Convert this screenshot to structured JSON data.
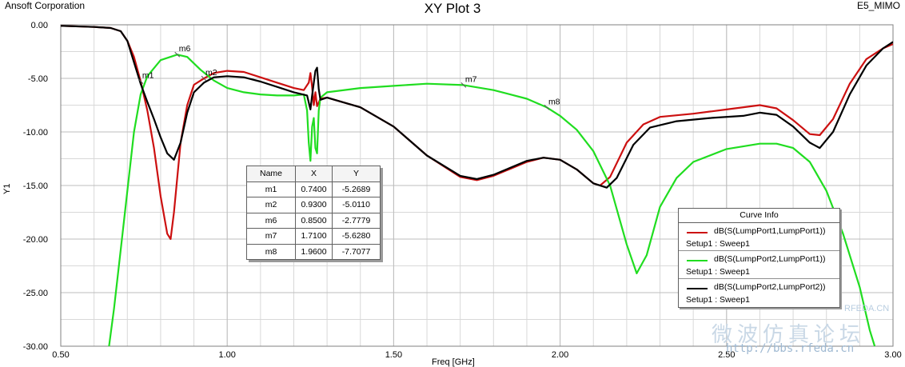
{
  "header": {
    "company": "Ansoft Corporation",
    "title": "XY Plot 3",
    "project": "E5_MIMO"
  },
  "chart_data": {
    "type": "line",
    "title": "XY Plot 3",
    "xlabel": "Freq [GHz]",
    "ylabel": "Y1",
    "xlim": [
      0.5,
      3.0
    ],
    "ylim": [
      -30.0,
      0.0
    ],
    "grid": true,
    "x_ticks": [
      "0.50",
      "1.00",
      "1.50",
      "2.00",
      "2.50",
      "3.00"
    ],
    "y_ticks": [
      "0.00",
      "-5.00",
      "-10.00",
      "-15.00",
      "-20.00",
      "-25.00",
      "-30.00"
    ],
    "series": [
      {
        "name": "dB(S(LumpPort1,LumpPort1))",
        "setup": "Setup1 : Sweep1",
        "color": "#cc1010",
        "points": [
          [
            0.5,
            -0.1
          ],
          [
            0.6,
            -0.2
          ],
          [
            0.65,
            -0.3
          ],
          [
            0.68,
            -0.6
          ],
          [
            0.7,
            -1.5
          ],
          [
            0.72,
            -3.0
          ],
          [
            0.74,
            -5.27
          ],
          [
            0.76,
            -8.0
          ],
          [
            0.78,
            -11.5
          ],
          [
            0.8,
            -16.0
          ],
          [
            0.82,
            -19.5
          ],
          [
            0.83,
            -20.0
          ],
          [
            0.84,
            -17.5
          ],
          [
            0.86,
            -11.0
          ],
          [
            0.88,
            -7.5
          ],
          [
            0.9,
            -5.6
          ],
          [
            0.93,
            -5.01
          ],
          [
            0.96,
            -4.5
          ],
          [
            1.0,
            -4.3
          ],
          [
            1.05,
            -4.4
          ],
          [
            1.1,
            -4.9
          ],
          [
            1.15,
            -5.4
          ],
          [
            1.2,
            -5.9
          ],
          [
            1.23,
            -6.1
          ],
          [
            1.245,
            -5.4
          ],
          [
            1.25,
            -4.5
          ],
          [
            1.255,
            -5.8
          ],
          [
            1.26,
            -7.5
          ],
          [
            1.265,
            -6.3
          ],
          [
            1.27,
            -7.6
          ],
          [
            1.28,
            -6.9
          ],
          [
            1.3,
            -6.8
          ],
          [
            1.4,
            -7.7
          ],
          [
            1.5,
            -9.5
          ],
          [
            1.6,
            -12.2
          ],
          [
            1.7,
            -14.2
          ],
          [
            1.75,
            -14.5
          ],
          [
            1.8,
            -14.1
          ],
          [
            1.9,
            -12.8
          ],
          [
            1.95,
            -12.4
          ],
          [
            2.0,
            -12.6
          ],
          [
            2.05,
            -13.5
          ],
          [
            2.1,
            -14.8
          ],
          [
            2.12,
            -15.0
          ],
          [
            2.15,
            -14.2
          ],
          [
            2.2,
            -11.0
          ],
          [
            2.25,
            -9.3
          ],
          [
            2.3,
            -8.6
          ],
          [
            2.4,
            -8.3
          ],
          [
            2.5,
            -7.9
          ],
          [
            2.6,
            -7.5
          ],
          [
            2.65,
            -7.8
          ],
          [
            2.7,
            -8.9
          ],
          [
            2.75,
            -10.2
          ],
          [
            2.78,
            -10.3
          ],
          [
            2.82,
            -8.8
          ],
          [
            2.87,
            -5.5
          ],
          [
            2.92,
            -3.2
          ],
          [
            2.97,
            -2.2
          ],
          [
            3.0,
            -1.8
          ]
        ]
      },
      {
        "name": "dB(S(LumpPort2,LumpPort1))",
        "setup": "Setup1 : Sweep1",
        "color": "#20dd20",
        "points": [
          [
            0.645,
            -30.0
          ],
          [
            0.66,
            -26.5
          ],
          [
            0.68,
            -21.0
          ],
          [
            0.7,
            -15.5
          ],
          [
            0.72,
            -10.0
          ],
          [
            0.74,
            -6.5
          ],
          [
            0.76,
            -4.8
          ],
          [
            0.8,
            -3.3
          ],
          [
            0.85,
            -2.78
          ],
          [
            0.88,
            -3.0
          ],
          [
            0.92,
            -4.2
          ],
          [
            0.96,
            -5.2
          ],
          [
            1.0,
            -5.9
          ],
          [
            1.05,
            -6.3
          ],
          [
            1.1,
            -6.5
          ],
          [
            1.15,
            -6.6
          ],
          [
            1.2,
            -6.6
          ],
          [
            1.23,
            -6.5
          ],
          [
            1.24,
            -8.0
          ],
          [
            1.245,
            -11.0
          ],
          [
            1.25,
            -12.7
          ],
          [
            1.255,
            -9.5
          ],
          [
            1.26,
            -8.7
          ],
          [
            1.265,
            -11.5
          ],
          [
            1.27,
            -12.0
          ],
          [
            1.275,
            -8.0
          ],
          [
            1.28,
            -6.8
          ],
          [
            1.3,
            -6.3
          ],
          [
            1.4,
            -5.9
          ],
          [
            1.5,
            -5.7
          ],
          [
            1.6,
            -5.5
          ],
          [
            1.71,
            -5.63
          ],
          [
            1.8,
            -6.1
          ],
          [
            1.9,
            -6.9
          ],
          [
            1.96,
            -7.71
          ],
          [
            2.0,
            -8.5
          ],
          [
            2.05,
            -9.8
          ],
          [
            2.1,
            -11.8
          ],
          [
            2.15,
            -15.0
          ],
          [
            2.2,
            -20.5
          ],
          [
            2.23,
            -23.2
          ],
          [
            2.26,
            -21.5
          ],
          [
            2.3,
            -17.0
          ],
          [
            2.35,
            -14.3
          ],
          [
            2.4,
            -12.8
          ],
          [
            2.5,
            -11.6
          ],
          [
            2.6,
            -11.1
          ],
          [
            2.65,
            -11.1
          ],
          [
            2.7,
            -11.5
          ],
          [
            2.75,
            -12.8
          ],
          [
            2.8,
            -15.5
          ],
          [
            2.85,
            -19.5
          ],
          [
            2.9,
            -24.5
          ],
          [
            2.93,
            -28.5
          ],
          [
            2.945,
            -30.0
          ]
        ]
      },
      {
        "name": "dB(S(LumpPort2,LumpPort2))",
        "setup": "Setup1 : Sweep1",
        "color": "#000000",
        "points": [
          [
            0.5,
            -0.1
          ],
          [
            0.6,
            -0.2
          ],
          [
            0.65,
            -0.3
          ],
          [
            0.68,
            -0.6
          ],
          [
            0.7,
            -1.5
          ],
          [
            0.72,
            -3.5
          ],
          [
            0.74,
            -5.5
          ],
          [
            0.76,
            -7.2
          ],
          [
            0.78,
            -8.8
          ],
          [
            0.8,
            -10.5
          ],
          [
            0.82,
            -12.0
          ],
          [
            0.84,
            -12.6
          ],
          [
            0.86,
            -11.0
          ],
          [
            0.88,
            -8.2
          ],
          [
            0.9,
            -6.3
          ],
          [
            0.93,
            -5.4
          ],
          [
            0.96,
            -4.9
          ],
          [
            1.0,
            -4.8
          ],
          [
            1.05,
            -4.9
          ],
          [
            1.1,
            -5.3
          ],
          [
            1.15,
            -5.8
          ],
          [
            1.2,
            -6.3
          ],
          [
            1.24,
            -6.6
          ],
          [
            1.25,
            -7.9
          ],
          [
            1.255,
            -6.6
          ],
          [
            1.265,
            -4.3
          ],
          [
            1.27,
            -4.0
          ],
          [
            1.275,
            -6.0
          ],
          [
            1.28,
            -7.0
          ],
          [
            1.3,
            -6.8
          ],
          [
            1.4,
            -7.7
          ],
          [
            1.5,
            -9.5
          ],
          [
            1.6,
            -12.2
          ],
          [
            1.7,
            -14.1
          ],
          [
            1.75,
            -14.4
          ],
          [
            1.8,
            -14.0
          ],
          [
            1.9,
            -12.7
          ],
          [
            1.95,
            -12.4
          ],
          [
            2.0,
            -12.6
          ],
          [
            2.05,
            -13.5
          ],
          [
            2.1,
            -14.8
          ],
          [
            2.14,
            -15.2
          ],
          [
            2.17,
            -14.3
          ],
          [
            2.22,
            -11.2
          ],
          [
            2.27,
            -9.6
          ],
          [
            2.35,
            -9.0
          ],
          [
            2.45,
            -8.7
          ],
          [
            2.55,
            -8.5
          ],
          [
            2.6,
            -8.2
          ],
          [
            2.65,
            -8.4
          ],
          [
            2.7,
            -9.5
          ],
          [
            2.75,
            -11.0
          ],
          [
            2.78,
            -11.5
          ],
          [
            2.82,
            -10.0
          ],
          [
            2.87,
            -6.5
          ],
          [
            2.92,
            -3.8
          ],
          [
            2.97,
            -2.2
          ],
          [
            3.0,
            -1.6
          ]
        ]
      }
    ],
    "markers": [
      {
        "name": "m1",
        "x": 0.74,
        "y": -5.2689,
        "x_text": "0.7400",
        "y_text": "-5.2689"
      },
      {
        "name": "m2",
        "x": 0.93,
        "y": -5.011,
        "x_text": "0.9300",
        "y_text": "-5.0110"
      },
      {
        "name": "m6",
        "x": 0.85,
        "y": -2.7779,
        "x_text": "0.8500",
        "y_text": "-2.7779"
      },
      {
        "name": "m7",
        "x": 1.71,
        "y": -5.628,
        "x_text": "1.7100",
        "y_text": "-5.6280"
      },
      {
        "name": "m8",
        "x": 1.96,
        "y": -7.7077,
        "x_text": "1.9600",
        "y_text": "-7.7077"
      }
    ],
    "marker_table_headers": [
      "Name",
      "X",
      "Y"
    ],
    "legend_title": "Curve Info",
    "legend_position": "bottom-right"
  },
  "watermark": {
    "site": "RFEDA.CN",
    "chinese": "微波仿真论坛",
    "url": "http://bbs.rfeda.cn"
  }
}
